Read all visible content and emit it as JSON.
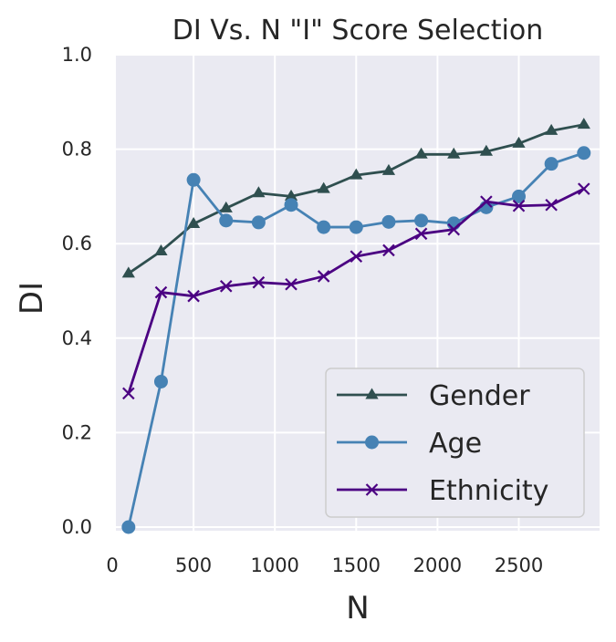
{
  "chart_data": {
    "type": "line",
    "title": "DI Vs. N \"I\" Score Selection",
    "xlabel": "N",
    "ylabel": "DI",
    "xlim": [
      0,
      3000
    ],
    "ylim": [
      0,
      1.0
    ],
    "xticks": [
      0,
      500,
      1000,
      1500,
      2000,
      2500
    ],
    "yticks": [
      0.0,
      0.2,
      0.4,
      0.6,
      0.8,
      1.0
    ],
    "xtick_labels": [
      "0",
      "500",
      "1000",
      "1500",
      "2000",
      "2500"
    ],
    "ytick_labels": [
      "0.0",
      "0.2",
      "0.4",
      "0.6",
      "0.8",
      "1.0"
    ],
    "grid": true,
    "legend_position": "lower-right",
    "x": [
      100,
      300,
      500,
      700,
      900,
      1100,
      1300,
      1500,
      1700,
      1900,
      2100,
      2300,
      2500,
      2700,
      2900
    ],
    "series": [
      {
        "name": "Gender",
        "marker": "triangle",
        "color": "#2f4f4f",
        "values": [
          0.537,
          0.584,
          0.642,
          0.675,
          0.707,
          0.7,
          0.716,
          0.745,
          0.754,
          0.789,
          0.789,
          0.795,
          0.812,
          0.839,
          0.852
        ]
      },
      {
        "name": "Age",
        "marker": "circle",
        "color": "#4682b4",
        "values": [
          0.0,
          0.308,
          0.735,
          0.649,
          0.645,
          0.682,
          0.635,
          0.635,
          0.646,
          0.649,
          0.643,
          0.677,
          0.7,
          0.769,
          0.792
        ]
      },
      {
        "name": "Ethnicity",
        "marker": "x",
        "color": "#4b0082",
        "values": [
          0.283,
          0.497,
          0.489,
          0.51,
          0.518,
          0.514,
          0.531,
          0.573,
          0.586,
          0.621,
          0.63,
          0.689,
          0.68,
          0.682,
          0.716
        ]
      }
    ]
  }
}
